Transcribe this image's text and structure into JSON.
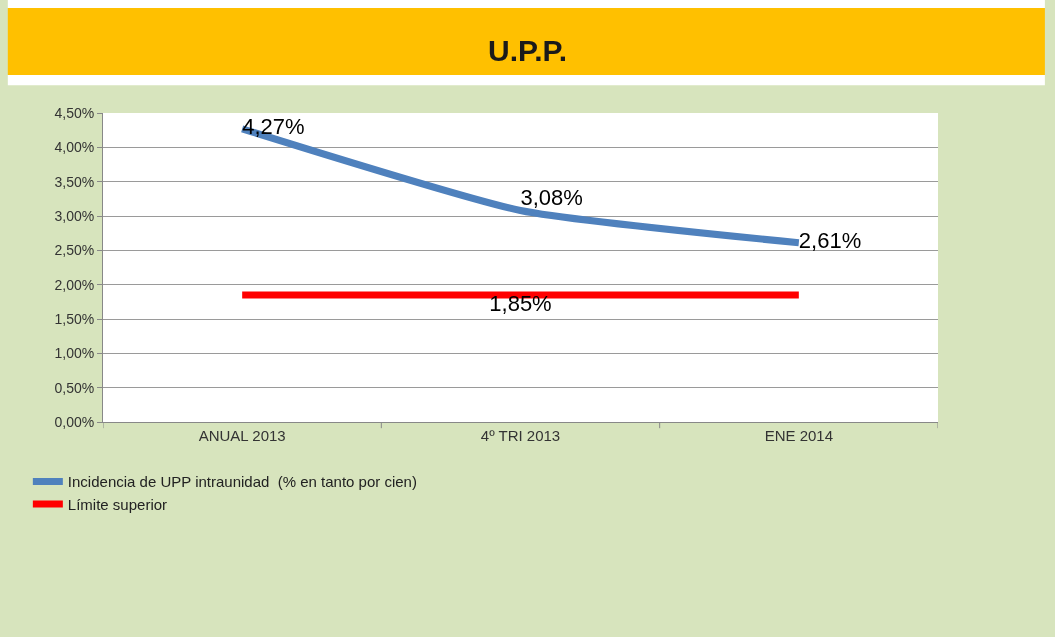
{
  "chart_data": {
    "type": "line",
    "title": "U.P.P.",
    "categories": [
      "ANUAL 2013",
      "4º TRI 2013",
      "ENE 2014"
    ],
    "series": [
      {
        "name": "Incidencia de UPP intraunidad  (% en tanto por cien)",
        "color": "#4f81bd",
        "values": [
          4.27,
          3.08,
          2.61
        ],
        "value_labels": [
          "4,27%",
          "3,08%",
          "2,61%"
        ]
      },
      {
        "name": "Límite superior",
        "color": "#ff0000",
        "values": [
          1.85,
          1.85,
          1.85
        ],
        "value_labels": [
          null,
          "1,85%",
          null
        ]
      }
    ],
    "ylim": [
      0,
      4.5
    ],
    "yticks": [
      {
        "value": 0,
        "label": "0,00%"
      },
      {
        "value": 0.5,
        "label": "0,50%"
      },
      {
        "value": 1,
        "label": "1,00%"
      },
      {
        "value": 1.5,
        "label": "1,50%"
      },
      {
        "value": 2,
        "label": "2,00%"
      },
      {
        "value": 2.5,
        "label": "2,50%"
      },
      {
        "value": 3,
        "label": "3,00%"
      },
      {
        "value": 3.5,
        "label": "3,50%"
      },
      {
        "value": 4,
        "label": "4,00%"
      },
      {
        "value": 4.5,
        "label": "4,50%"
      }
    ],
    "grid": "y",
    "legend": "bottom left",
    "marker": "none",
    "line_style": "solid"
  }
}
